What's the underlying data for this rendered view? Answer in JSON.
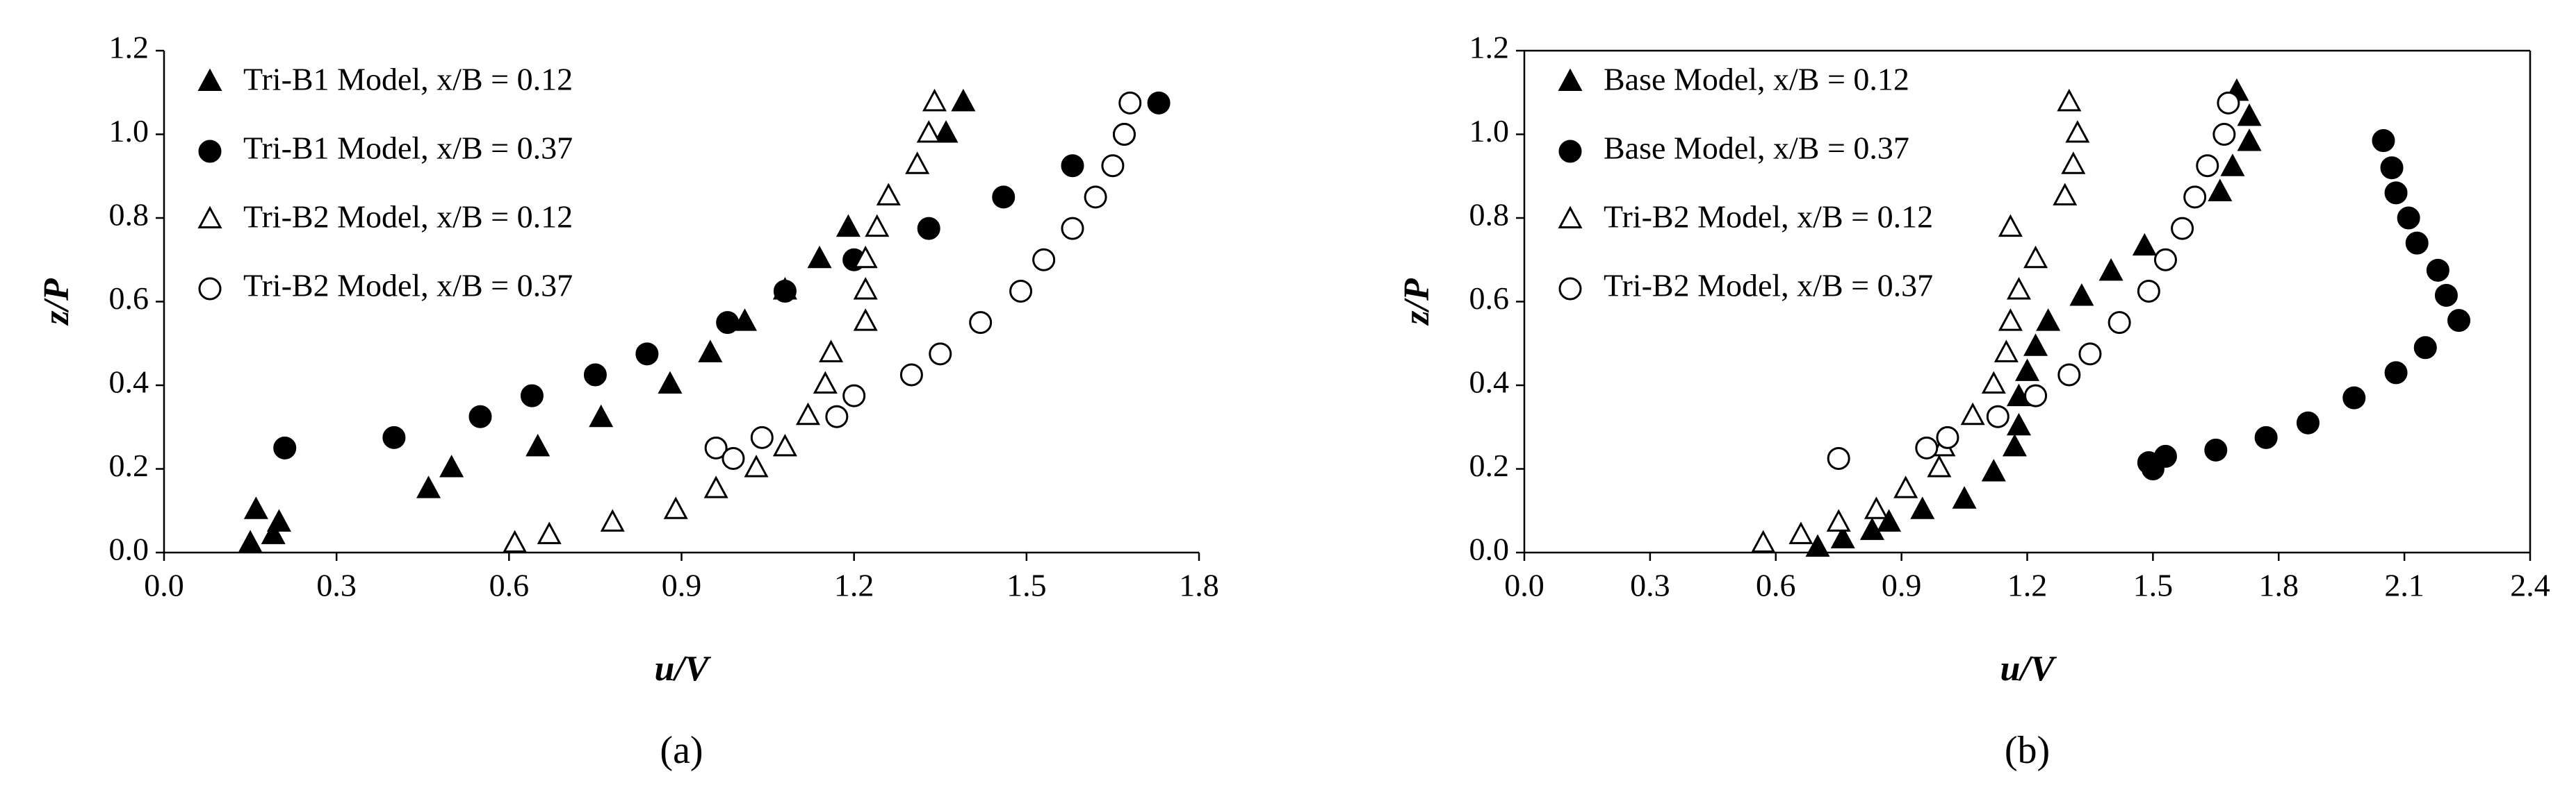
{
  "chart_data": [
    {
      "type": "scatter",
      "label": "(a)",
      "xlabel": "u/V",
      "ylabel": "z/P",
      "frame": false,
      "legend": "upper left",
      "xlim": [
        0,
        1.8
      ],
      "ylim": [
        0,
        1.2
      ],
      "xticks": [
        {
          "value": 0,
          "label": "0.0"
        },
        {
          "value": 0.3,
          "label": "0.3"
        },
        {
          "value": 0.6,
          "label": "0.6"
        },
        {
          "value": 0.9,
          "label": "0.9"
        },
        {
          "value": 1.2,
          "label": "1.2"
        },
        {
          "value": 1.5,
          "label": "1.5"
        },
        {
          "value": 1.8,
          "label": "1.8"
        }
      ],
      "yticks": [
        {
          "value": 0,
          "label": "0.0"
        },
        {
          "value": 0.2,
          "label": "0.2"
        },
        {
          "value": 0.4,
          "label": "0.4"
        },
        {
          "value": 0.6,
          "label": "0.6"
        },
        {
          "value": 0.8,
          "label": "0.8"
        },
        {
          "value": 1,
          "label": "1.0"
        },
        {
          "value": 1.2,
          "label": "1.2"
        }
      ],
      "series": [
        {
          "name": "Tri-B1 Model, x/B = 0.12",
          "marker": "triangle",
          "color": "#000000",
          "fill": "#000000",
          "x": [
            0.15,
            0.16,
            0.19,
            0.2,
            0.46,
            0.5,
            0.65,
            0.76,
            0.88,
            0.95,
            1.01,
            1.08,
            1.14,
            1.19,
            1.36,
            1.39
          ],
          "values": [
            0.02,
            0.1,
            0.04,
            0.07,
            0.15,
            0.2,
            0.25,
            0.32,
            0.4,
            0.475,
            0.55,
            0.625,
            0.7,
            0.775,
            1.0,
            1.075
          ]
        },
        {
          "name": "Tri-B1 Model, x/B = 0.37",
          "marker": "circle",
          "color": "#000000",
          "fill": "#000000",
          "x": [
            0.21,
            0.4,
            0.55,
            0.64,
            0.75,
            0.84,
            0.98,
            1.08,
            1.2,
            1.33,
            1.46,
            1.58,
            1.67,
            1.73
          ],
          "values": [
            0.25,
            0.275,
            0.325,
            0.375,
            0.425,
            0.475,
            0.55,
            0.625,
            0.7,
            0.775,
            0.85,
            0.925,
            1.0,
            1.075
          ]
        },
        {
          "name": "Tri-B2 Model, x/B = 0.12",
          "marker": "triangle",
          "color": "#000000",
          "fill": "#ffffff",
          "x": [
            0.61,
            0.67,
            0.78,
            0.89,
            0.96,
            1.03,
            1.08,
            1.12,
            1.15,
            1.16,
            1.22,
            1.22,
            1.22,
            1.24,
            1.26,
            1.31,
            1.33,
            1.34
          ],
          "values": [
            0.02,
            0.04,
            0.07,
            0.1,
            0.15,
            0.2,
            0.25,
            0.325,
            0.4,
            0.475,
            0.55,
            0.625,
            0.7,
            0.775,
            0.85,
            0.925,
            1.0,
            1.075
          ]
        },
        {
          "name": "Tri-B2 Model, x/B = 0.37",
          "marker": "circle",
          "color": "#000000",
          "fill": "#ffffff",
          "x": [
            0.96,
            0.99,
            1.04,
            1.17,
            1.2,
            1.3,
            1.35,
            1.42,
            1.49,
            1.53,
            1.58,
            1.62,
            1.65,
            1.67,
            1.68
          ],
          "values": [
            0.25,
            0.225,
            0.275,
            0.325,
            0.375,
            0.425,
            0.475,
            0.55,
            0.625,
            0.7,
            0.775,
            0.85,
            0.925,
            1.0,
            1.075
          ]
        }
      ]
    },
    {
      "type": "scatter",
      "label": "(b)",
      "xlabel": "u/V",
      "ylabel": "z/P",
      "frame": true,
      "legend": "upper left",
      "xlim": [
        0,
        2.4
      ],
      "ylim": [
        0,
        1.2
      ],
      "xticks": [
        {
          "value": 0,
          "label": "0.0"
        },
        {
          "value": 0.3,
          "label": "0.3"
        },
        {
          "value": 0.6,
          "label": "0.6"
        },
        {
          "value": 0.9,
          "label": "0.9"
        },
        {
          "value": 1.2,
          "label": "1.2"
        },
        {
          "value": 1.5,
          "label": "1.5"
        },
        {
          "value": 1.8,
          "label": "1.8"
        },
        {
          "value": 2.1,
          "label": "2.1"
        },
        {
          "value": 2.4,
          "label": "2.4"
        }
      ],
      "yticks": [
        {
          "value": 0,
          "label": "0.0"
        },
        {
          "value": 0.2,
          "label": "0.2"
        },
        {
          "value": 0.4,
          "label": "0.4"
        },
        {
          "value": 0.6,
          "label": "0.6"
        },
        {
          "value": 0.8,
          "label": "0.8"
        },
        {
          "value": 1,
          "label": "1.0"
        },
        {
          "value": 1.2,
          "label": "1.2"
        }
      ],
      "series": [
        {
          "name": "Base Model, x/B = 0.12",
          "marker": "triangle",
          "color": "#000000",
          "fill": "#000000",
          "x": [
            0.7,
            0.76,
            0.83,
            0.87,
            0.95,
            1.05,
            1.12,
            1.17,
            1.18,
            1.18,
            1.2,
            1.22,
            1.25,
            1.33,
            1.4,
            1.48,
            1.66,
            1.69,
            1.73,
            1.73,
            1.7
          ],
          "values": [
            0.01,
            0.03,
            0.05,
            0.07,
            0.1,
            0.125,
            0.19,
            0.25,
            0.3,
            0.37,
            0.43,
            0.49,
            0.55,
            0.61,
            0.67,
            0.73,
            0.86,
            0.92,
            0.98,
            1.04,
            1.1
          ]
        },
        {
          "name": "Base Model, x/B = 0.37",
          "marker": "circle",
          "color": "#000000",
          "fill": "#000000",
          "x": [
            1.5,
            1.49,
            1.53,
            1.65,
            1.77,
            1.87,
            1.98,
            2.08,
            2.15,
            2.23,
            2.2,
            2.18,
            2.13,
            2.11,
            2.08,
            2.07,
            2.05
          ],
          "values": [
            0.2,
            0.215,
            0.23,
            0.245,
            0.275,
            0.31,
            0.37,
            0.43,
            0.49,
            0.555,
            0.615,
            0.675,
            0.74,
            0.8,
            0.86,
            0.92,
            0.985
          ]
        },
        {
          "name": "Tri-B2 Model, x/B = 0.12",
          "marker": "triangle",
          "color": "#000000",
          "fill": "#ffffff",
          "x": [
            0.57,
            0.66,
            0.75,
            0.84,
            0.91,
            0.99,
            1.0,
            1.07,
            1.12,
            1.15,
            1.16,
            1.18,
            1.22,
            1.16,
            1.29,
            1.31,
            1.32,
            1.3
          ],
          "values": [
            0.02,
            0.04,
            0.07,
            0.1,
            0.15,
            0.2,
            0.25,
            0.325,
            0.4,
            0.475,
            0.55,
            0.625,
            0.7,
            0.775,
            0.85,
            0.925,
            1.0,
            1.075
          ]
        },
        {
          "name": "Tri-B2 Model, x/B = 0.37",
          "marker": "circle",
          "color": "#000000",
          "fill": "#ffffff",
          "x": [
            0.75,
            0.96,
            1.01,
            1.13,
            1.22,
            1.3,
            1.35,
            1.42,
            1.49,
            1.53,
            1.57,
            1.6,
            1.63,
            1.67,
            1.68
          ],
          "values": [
            0.225,
            0.25,
            0.275,
            0.325,
            0.375,
            0.425,
            0.475,
            0.55,
            0.625,
            0.7,
            0.775,
            0.85,
            0.925,
            1.0,
            1.075
          ]
        }
      ]
    }
  ]
}
